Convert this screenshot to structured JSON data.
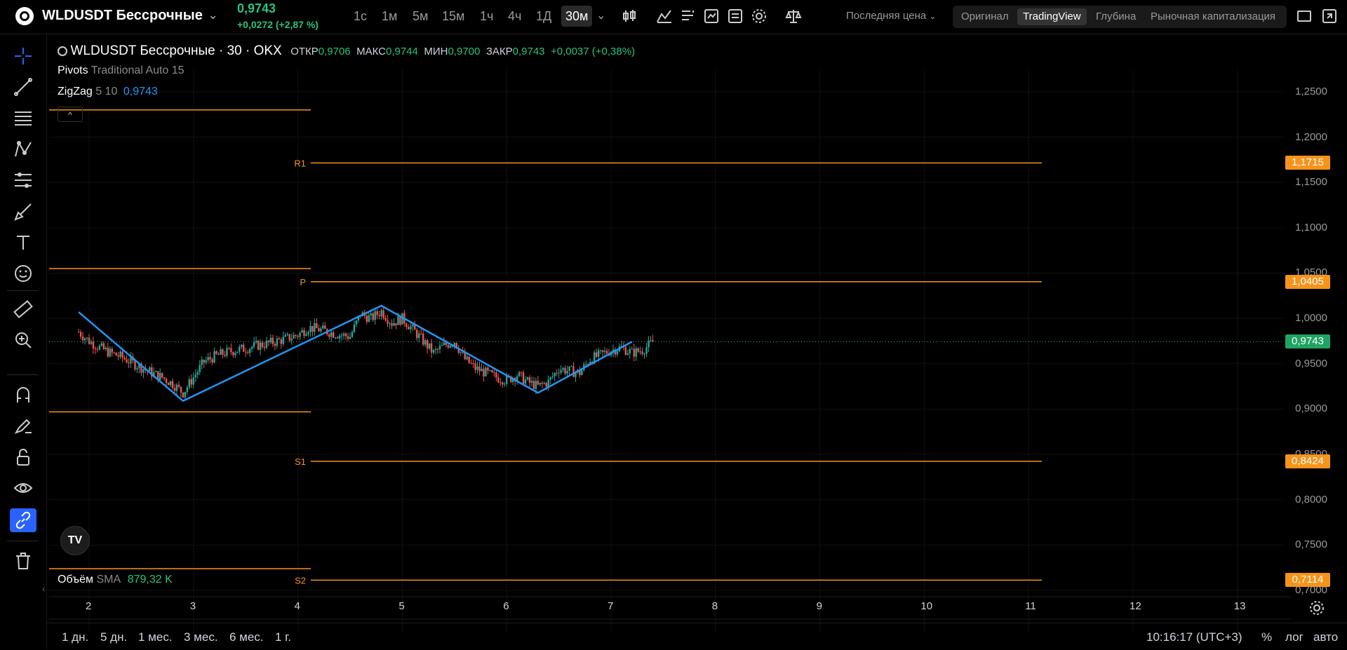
{
  "header": {
    "symbol": "WLDUSDT Бессрочные",
    "price": "0,9743",
    "change": "+0,0272 (+2,87 %)",
    "timeframes": [
      "1с",
      "1м",
      "5м",
      "15м",
      "1ч",
      "4ч",
      "1Д",
      "30м"
    ],
    "active_timeframe": "30м",
    "price_type": "Последняя цена",
    "view_modes": [
      "Оригинал",
      "TradingView",
      "Глубина",
      "Рыночная капитализация"
    ],
    "active_view": "TradingView"
  },
  "legend": {
    "title": "WLDUSDT Бессрочные · 30 · OKX",
    "open_label": "ОТКР",
    "open": "0,9706",
    "high_label": "МАКС",
    "high": "0,9744",
    "low_label": "МИН",
    "low": "0,9700",
    "close_label": "ЗАКР",
    "close": "0,9743",
    "change": "+0,0037 (+0,38%)",
    "pivots_name": "Pivots",
    "pivots_params": "Traditional Auto 15",
    "zigzag_name": "ZigZag",
    "zigzag_params": "5 10",
    "zigzag_value": "0,9743",
    "volume_name": "Объём",
    "volume_ma": "SMA",
    "volume_value": "879,32 K"
  },
  "levels": [
    {
      "label": "R1",
      "value": "1,1715"
    },
    {
      "label": "P",
      "value": "1,0405"
    },
    {
      "label": "S1",
      "value": "0,8424"
    },
    {
      "label": "S2",
      "value": "0,7114"
    }
  ],
  "current_price_badge": "0,9743",
  "y_ticks": [
    "1,2500",
    "1,2000",
    "1,1500",
    "1,1000",
    "1,0500",
    "1,0000",
    "0,9500",
    "0,9000",
    "0,8500",
    "0,8000",
    "0,7500",
    "0,7000"
  ],
  "x_ticks": [
    "2",
    "3",
    "4",
    "5",
    "6",
    "7",
    "8",
    "9",
    "10",
    "11",
    "12",
    "13"
  ],
  "ranges": [
    "1 дн.",
    "5 дн.",
    "1 мес.",
    "3 мес.",
    "6 мес.",
    "1 г."
  ],
  "clock": "10:16:17 (UTC+3)",
  "scale_options": [
    "%",
    "лог",
    "авто"
  ],
  "colors": {
    "up": "#26a69a",
    "down": "#ef5350",
    "pivot": "#f7931a",
    "zigzag": "#2196f3",
    "price": "#26c281"
  },
  "chart_data": {
    "type": "candlestick",
    "title": "WLDUSDT Бессрочные · 30 · OKX",
    "ylim": [
      0.69,
      1.27
    ],
    "pivot_levels": {
      "R1": 1.1715,
      "P": 1.0405,
      "S1": 0.8424,
      "S2": 0.7114
    },
    "previous_pivot_levels": {
      "R1": 1.23,
      "P": 1.055,
      "S1": 0.897,
      "S2": 0.724
    },
    "last_close": 0.9743,
    "zigzag": {
      "x": [
        "1.9",
        "2.9",
        "4.8",
        "6.3",
        "7.2"
      ],
      "y": [
        1.007,
        0.909,
        1.014,
        0.918,
        0.9743
      ]
    },
    "path": {
      "x": [
        1.9,
        2.0,
        2.1,
        2.2,
        2.3,
        2.4,
        2.5,
        2.6,
        2.7,
        2.8,
        2.9,
        3.0,
        3.1,
        3.2,
        3.3,
        3.4,
        3.5,
        3.6,
        3.7,
        3.8,
        3.9,
        4.0,
        4.1,
        4.2,
        4.3,
        4.4,
        4.5,
        4.6,
        4.7,
        4.8,
        4.9,
        5.0,
        5.1,
        5.2,
        5.3,
        5.4,
        5.5,
        5.6,
        5.7,
        5.8,
        5.9,
        6.0,
        6.1,
        6.2,
        6.3,
        6.4,
        6.5,
        6.6,
        6.7,
        6.8,
        6.9,
        7.0,
        7.1,
        7.2,
        7.3,
        7.4
      ],
      "y": [
        0.985,
        0.975,
        0.968,
        0.962,
        0.958,
        0.952,
        0.946,
        0.94,
        0.935,
        0.928,
        0.918,
        0.935,
        0.952,
        0.958,
        0.962,
        0.965,
        0.967,
        0.97,
        0.972,
        0.975,
        0.978,
        0.982,
        0.99,
        0.988,
        0.985,
        0.982,
        0.98,
        1.005,
        1.0,
        1.008,
        0.995,
        1.0,
        0.988,
        0.975,
        0.962,
        0.97,
        0.975,
        0.955,
        0.945,
        0.94,
        0.935,
        0.932,
        0.938,
        0.93,
        0.925,
        0.93,
        0.945,
        0.942,
        0.94,
        0.955,
        0.96,
        0.965,
        0.968,
        0.962,
        0.965,
        0.974
      ]
    }
  }
}
